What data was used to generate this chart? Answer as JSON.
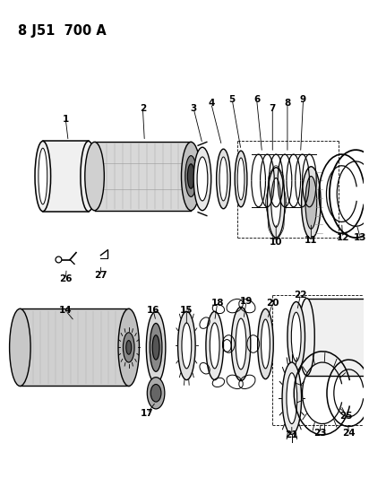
{
  "title": "8 J51 700 A",
  "bg": "#ffffff",
  "lc": "#000000",
  "fw": 4.12,
  "fh": 5.33,
  "dpi": 100
}
